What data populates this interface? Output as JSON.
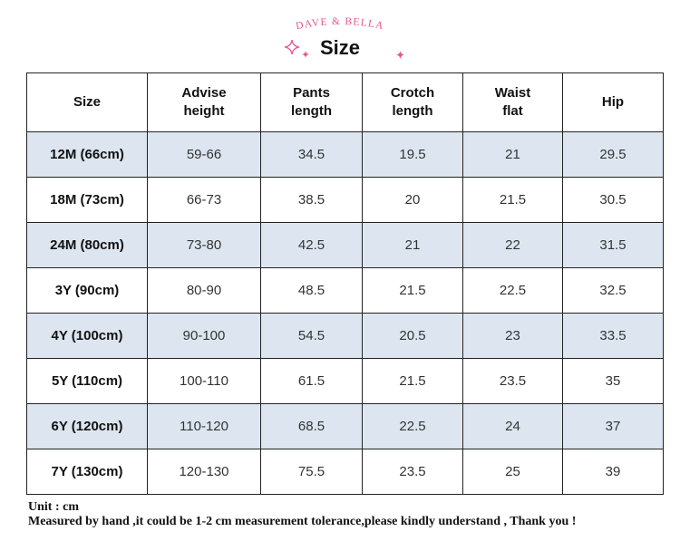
{
  "header": {
    "brand": "DAVE & BELLA",
    "title": "Size",
    "brand_color": "#e8558c",
    "sparkle_icon": "sparkle-icon"
  },
  "table": {
    "columns": [
      "Size",
      "Advise height",
      "Pants length",
      "Crotch length",
      "Waist flat",
      "Hip"
    ],
    "column_lines": [
      [
        "Size"
      ],
      [
        "Advise",
        "height"
      ],
      [
        "Pants",
        "length"
      ],
      [
        "Crotch",
        "length"
      ],
      [
        "Waist",
        "flat"
      ],
      [
        "Hip"
      ]
    ],
    "rows": [
      {
        "size": "12M (66cm)",
        "advise_height": "59-66",
        "pants_length": "34.5",
        "crotch_length": "19.5",
        "waist_flat": "21",
        "hip": "29.5"
      },
      {
        "size": "18M (73cm)",
        "advise_height": "66-73",
        "pants_length": "38.5",
        "crotch_length": "20",
        "waist_flat": "21.5",
        "hip": "30.5"
      },
      {
        "size": "24M (80cm)",
        "advise_height": "73-80",
        "pants_length": "42.5",
        "crotch_length": "21",
        "waist_flat": "22",
        "hip": "31.5"
      },
      {
        "size": "3Y (90cm)",
        "advise_height": "80-90",
        "pants_length": "48.5",
        "crotch_length": "21.5",
        "waist_flat": "22.5",
        "hip": "32.5"
      },
      {
        "size": "4Y (100cm)",
        "advise_height": "90-100",
        "pants_length": "54.5",
        "crotch_length": "20.5",
        "waist_flat": "23",
        "hip": "33.5"
      },
      {
        "size": "5Y (110cm)",
        "advise_height": "100-110",
        "pants_length": "61.5",
        "crotch_length": "21.5",
        "waist_flat": "23.5",
        "hip": "35"
      },
      {
        "size": "6Y (120cm)",
        "advise_height": "110-120",
        "pants_length": "68.5",
        "crotch_length": "22.5",
        "waist_flat": "24",
        "hip": "37"
      },
      {
        "size": "7Y (130cm)",
        "advise_height": "120-130",
        "pants_length": "75.5",
        "crotch_length": "23.5",
        "waist_flat": "25",
        "hip": "39"
      }
    ],
    "shade_color": "#dde6f0"
  },
  "footer": {
    "unit": "Unit : cm",
    "note": "Measured by hand ,it could be 1-2 cm measurement tolerance,please kindly understand , Thank you !"
  }
}
